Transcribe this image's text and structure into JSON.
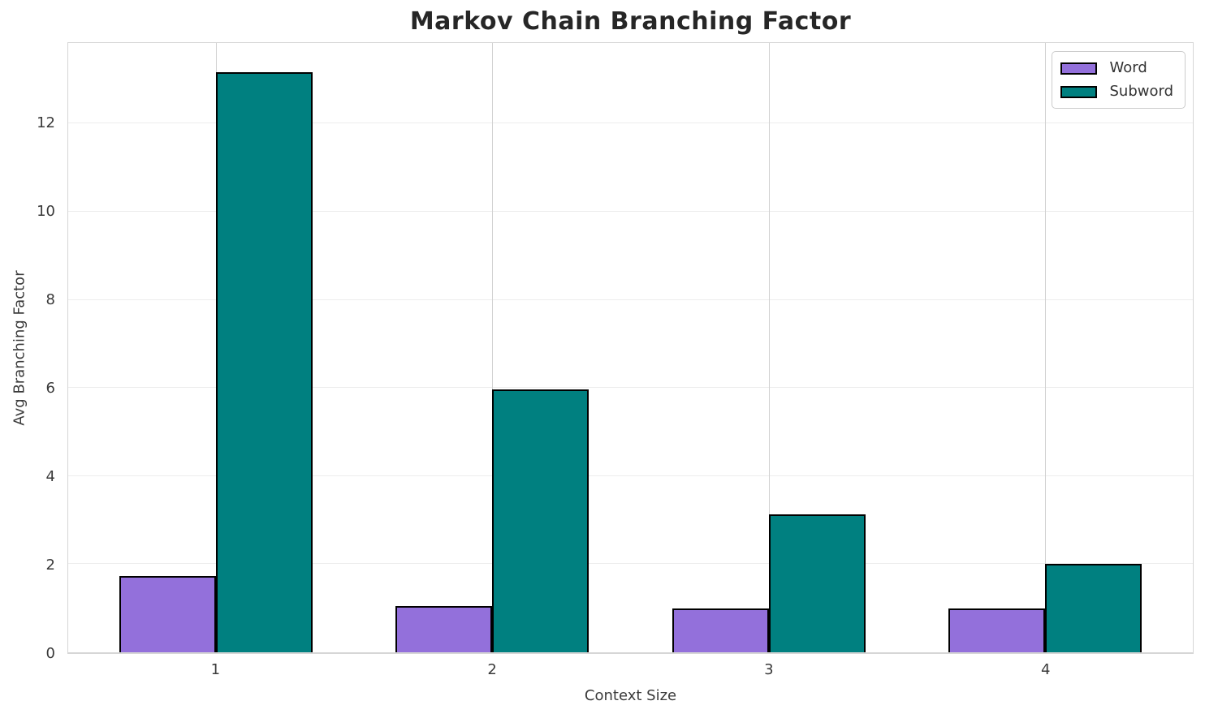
{
  "chart_data": {
    "type": "bar",
    "title": "Markov Chain Branching Factor",
    "xlabel": "Context Size",
    "ylabel": "Avg Branching Factor",
    "categories": [
      1,
      2,
      3,
      4
    ],
    "series": [
      {
        "name": "Word",
        "color": "#9370db",
        "values": [
          1.73,
          1.05,
          1.0,
          1.0
        ]
      },
      {
        "name": "Subword",
        "color": "#008080",
        "values": [
          13.17,
          5.97,
          3.14,
          2.01
        ]
      }
    ],
    "bar_width": 0.35,
    "bar_edge_color": "#000000",
    "xlim": [
      0.465,
      4.535
    ],
    "ylim": [
      0,
      13.83
    ],
    "yticks": [
      0,
      2,
      4,
      6,
      8,
      10,
      12
    ],
    "xticks": [
      "1",
      "2",
      "3",
      "4"
    ],
    "grid": true,
    "legend_position": "upper right",
    "legend_labels": [
      "Word",
      "Subword"
    ]
  }
}
